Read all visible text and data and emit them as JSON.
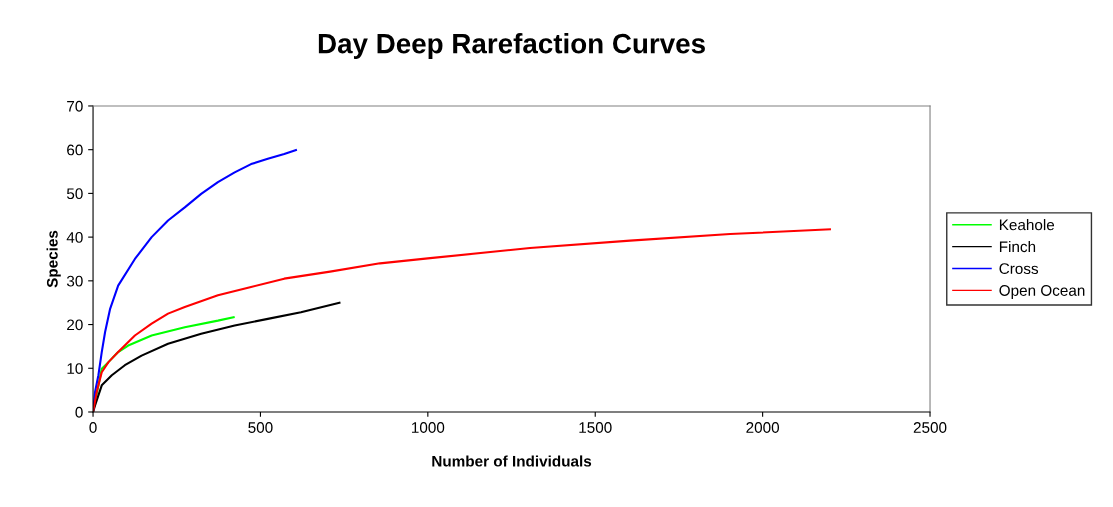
{
  "chart_data": {
    "type": "line",
    "title": "Day Deep Rarefaction Curves",
    "xlabel": "Number of Individuals",
    "ylabel": "Species",
    "xlim": [
      0,
      2500
    ],
    "xticks": [
      0,
      500,
      1000,
      1500,
      2000,
      2500
    ],
    "ylim": [
      0,
      70
    ],
    "yticks": [
      0,
      10,
      20,
      30,
      40,
      50,
      60,
      70
    ],
    "grid": false,
    "legend": "right",
    "marker": "none",
    "line_style": "solid",
    "series": [
      {
        "name": "Keahole",
        "color": "#00ff00",
        "x": [
          0,
          26,
          46,
          75,
          105,
          175,
          274,
          373,
          420
        ],
        "values": [
          0,
          9.9,
          11.4,
          13.7,
          15.2,
          17.5,
          19.4,
          20.9,
          21.7
        ]
      },
      {
        "name": "Finch",
        "color": "#000000",
        "x": [
          0,
          6,
          26,
          56,
          95,
          145,
          224,
          323,
          423,
          522,
          621,
          736
        ],
        "values": [
          0,
          1.5,
          6.1,
          8.4,
          10.7,
          12.9,
          15.6,
          17.9,
          19.8,
          21.3,
          22.8,
          25
        ]
      },
      {
        "name": "Cross",
        "color": "#0000ff",
        "x": [
          0,
          6,
          16,
          26,
          36,
          51,
          75,
          125,
          175,
          224,
          274,
          323,
          373,
          423,
          472,
          522,
          571,
          606
        ],
        "values": [
          0,
          4.6,
          8.4,
          13.7,
          18.3,
          23.6,
          28.9,
          35,
          40,
          43.8,
          46.8,
          49.9,
          52.6,
          54.8,
          56.7,
          57.9,
          59,
          59.9
        ]
      },
      {
        "name": "Open Ocean",
        "color": "#ff0000",
        "x": [
          0,
          11,
          26,
          46,
          75,
          125,
          175,
          224,
          274,
          373,
          472,
          571,
          708,
          857,
          1007,
          1305,
          1604,
          1903,
          2201
        ],
        "values": [
          0,
          4.6,
          9.1,
          11.4,
          13.7,
          17.5,
          20.2,
          22.5,
          24,
          26.7,
          28.6,
          30.5,
          32.1,
          34,
          35.2,
          37.5,
          39.2,
          40.7,
          41.8
        ]
      }
    ]
  }
}
